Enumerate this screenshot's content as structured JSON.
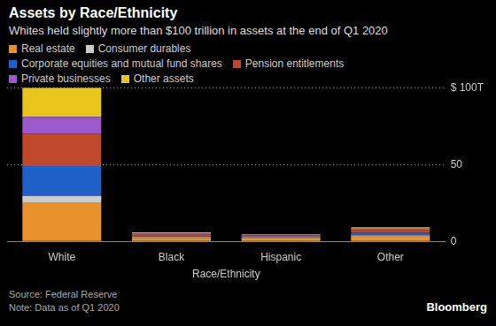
{
  "chart_data": {
    "type": "bar",
    "title": "Assets by Race/Ethnicity",
    "subtitle": "Whites held slightly more than $100 trillion in assets at the end of Q1 2020",
    "x_label": "Race/Ethnicity",
    "categories": [
      "White",
      "Black",
      "Hispanic",
      "Other"
    ],
    "series": [
      {
        "name": "Real estate",
        "color": "#e8912d",
        "values": [
          25,
          2.2,
          2.2,
          3.2
        ]
      },
      {
        "name": "Consumer durables",
        "color": "#cccccc",
        "values": [
          4.5,
          0.6,
          0.5,
          0.6
        ]
      },
      {
        "name": "Corporate equities and mutual fund shares",
        "color": "#1f5fc8",
        "values": [
          19.5,
          0.4,
          0.3,
          1.8
        ]
      },
      {
        "name": "Pension entitlements",
        "color": "#c0482a",
        "values": [
          21,
          1.6,
          0.8,
          1.9
        ]
      },
      {
        "name": "Private businesses",
        "color": "#9b59c9",
        "values": [
          11,
          0.4,
          0.5,
          0.8
        ]
      },
      {
        "name": "Other assets",
        "color": "#e8c51a",
        "values": [
          19,
          0.6,
          0.4,
          0.9
        ]
      }
    ],
    "stacked": true,
    "ylim": [
      0,
      100
    ],
    "yticks": [
      0,
      50,
      {
        "value": 100,
        "label": "$ 100T"
      }
    ],
    "grid": true,
    "legend": "top",
    "source": "Source: Federal Reserve",
    "note": "Note: Data as of Q1 2020",
    "credit": "Bloomberg"
  }
}
